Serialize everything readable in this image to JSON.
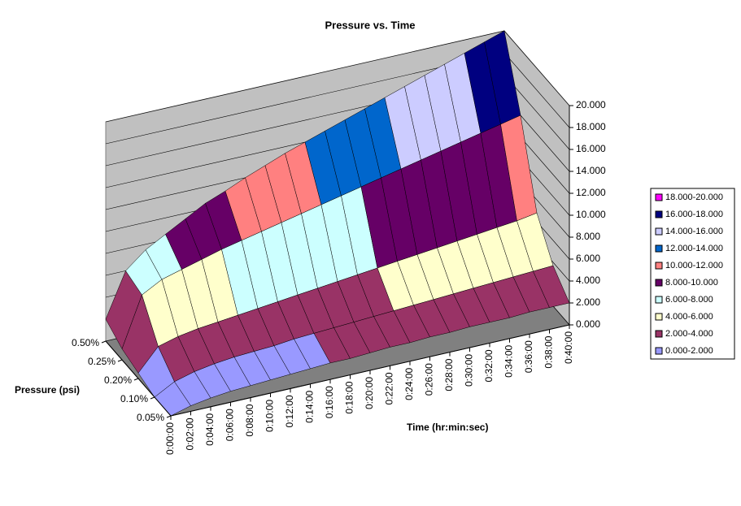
{
  "chart_data": {
    "type": "surface",
    "title": "Pressure vs. Time",
    "x_label": "Time (hr:min:sec)",
    "y_label": "Pressure (psi)",
    "categories": [
      "0:00:00",
      "0:02:00",
      "0:04:00",
      "0:06:00",
      "0:08:00",
      "0:10:00",
      "0:12:00",
      "0:14:00",
      "0:16:00",
      "0:18:00",
      "0:20:00",
      "0:22:00",
      "0:24:00",
      "0:26:00",
      "0:28:00",
      "0:30:00",
      "0:32:00",
      "0:34:00",
      "0:36:00",
      "0:38:00",
      "0:40:00"
    ],
    "series": [
      {
        "name": "0.05%",
        "values": [
          0,
          0.5,
          0.8,
          1.0,
          1.1,
          1.2,
          1.3,
          1.4,
          1.5,
          1.5,
          1.6,
          1.7,
          1.7,
          1.8,
          1.8,
          1.9,
          1.9,
          1.9,
          2.0,
          2.0,
          2.0
        ]
      },
      {
        "name": "0.10%",
        "values": [
          0,
          1.0,
          1.5,
          1.8,
          2.0,
          2.1,
          2.2,
          2.4,
          2.5,
          2.6,
          2.7,
          2.8,
          2.9,
          3.0,
          3.1,
          3.2,
          3.3,
          3.4,
          3.5,
          3.6,
          3.7
        ]
      },
      {
        "name": "0.20%",
        "values": [
          0.5,
          2.5,
          3.0,
          3.3,
          3.5,
          3.7,
          3.9,
          4.1,
          4.3,
          4.5,
          4.7,
          4.9,
          5.1,
          5.3,
          5.5,
          5.7,
          5.9,
          6.1,
          6.3,
          6.5,
          6.8
        ]
      },
      {
        "name": "0.25%",
        "values": [
          1.0,
          5.5,
          6.5,
          7.0,
          7.5,
          8.0,
          8.4,
          8.8,
          9.2,
          9.6,
          10.0,
          10.4,
          10.8,
          11.2,
          11.6,
          12.0,
          12.4,
          12.8,
          13.2,
          13.6,
          14.0
        ]
      },
      {
        "name": "0.50%",
        "values": [
          2.0,
          6.0,
          7.5,
          8.5,
          9.5,
          10.5,
          11.2,
          12.0,
          12.7,
          13.4,
          14.0,
          14.6,
          15.2,
          15.8,
          16.4,
          17.0,
          17.6,
          18.2,
          18.8,
          19.4,
          20.0
        ]
      }
    ],
    "zlim": [
      0,
      20
    ],
    "zticks": [
      {
        "value": 0,
        "label": "0.000"
      },
      {
        "value": 2,
        "label": "2.000"
      },
      {
        "value": 4,
        "label": "4.000"
      },
      {
        "value": 6,
        "label": "6.000"
      },
      {
        "value": 8,
        "label": "8.000"
      },
      {
        "value": 10,
        "label": "10.000"
      },
      {
        "value": 12,
        "label": "12.000"
      },
      {
        "value": 14,
        "label": "14.000"
      },
      {
        "value": 16,
        "label": "16.000"
      },
      {
        "value": 18,
        "label": "18.000"
      },
      {
        "value": 20,
        "label": "20.000"
      }
    ],
    "grid": true,
    "legend_position": "right",
    "bands": [
      {
        "label": "0.000-2.000",
        "from": 0,
        "to": 2,
        "color": "#9999ff"
      },
      {
        "label": "2.000-4.000",
        "from": 2,
        "to": 4,
        "color": "#993366"
      },
      {
        "label": "4.000-6.000",
        "from": 4,
        "to": 6,
        "color": "#ffffcc"
      },
      {
        "label": "6.000-8.000",
        "from": 6,
        "to": 8,
        "color": "#ccffff"
      },
      {
        "label": "8.000-10.000",
        "from": 8,
        "to": 10,
        "color": "#660066"
      },
      {
        "label": "10.000-12.000",
        "from": 10,
        "to": 12,
        "color": "#ff8080"
      },
      {
        "label": "12.000-14.000",
        "from": 12,
        "to": 14,
        "color": "#0066cc"
      },
      {
        "label": "14.000-16.000",
        "from": 14,
        "to": 16,
        "color": "#ccccff"
      },
      {
        "label": "16.000-18.000",
        "from": 16,
        "to": 18,
        "color": "#000080"
      },
      {
        "label": "18.000-20.000",
        "from": 18,
        "to": 20,
        "color": "#ff00ff"
      }
    ]
  }
}
